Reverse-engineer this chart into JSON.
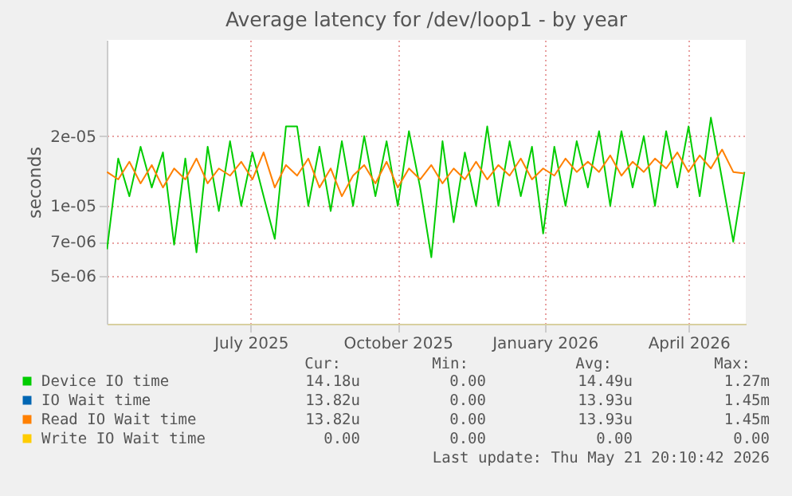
{
  "chart_data": {
    "type": "line",
    "title": "Average latency for /dev/loop1 - by year",
    "ylabel": "seconds",
    "log": true,
    "grid": true,
    "legend": "bottom",
    "marker": "none",
    "line_style": "solid",
    "xlim": [
      "2025-04-16T20:10",
      "2026-05-21T20:10"
    ],
    "xticks": [
      {
        "value": "2025-07-16",
        "label": "July 2025"
      },
      {
        "value": "2025-10-16",
        "label": "October 2025"
      },
      {
        "value": "2026-01-16",
        "label": "January 2026"
      },
      {
        "value": "2026-04-16",
        "label": "April 2026"
      }
    ],
    "ylim": [
      3.1e-06,
      5.2e-05
    ],
    "yticks": [
      {
        "value": 5e-06,
        "label": "5e-06"
      },
      {
        "value": 7e-06,
        "label": "7e-06"
      },
      {
        "value": 1e-05,
        "label": "1e-05"
      },
      {
        "value": 2e-05,
        "label": "2e-05"
      }
    ],
    "x": [
      "2025-04-17",
      "2025-04-24",
      "2025-05-01",
      "2025-05-08",
      "2025-05-15",
      "2025-05-22",
      "2025-05-29",
      "2025-06-05",
      "2025-06-12",
      "2025-06-19",
      "2025-06-26",
      "2025-07-03",
      "2025-07-10",
      "2025-07-17",
      "2025-07-24",
      "2025-07-31",
      "2025-08-07",
      "2025-08-14",
      "2025-08-21",
      "2025-08-28",
      "2025-09-04",
      "2025-09-11",
      "2025-09-18",
      "2025-09-25",
      "2025-10-02",
      "2025-10-09",
      "2025-10-16",
      "2025-10-23",
      "2025-10-30",
      "2025-11-06",
      "2025-11-13",
      "2025-11-20",
      "2025-11-27",
      "2025-12-04",
      "2025-12-11",
      "2025-12-18",
      "2025-12-25",
      "2026-01-01",
      "2026-01-08",
      "2026-01-15",
      "2026-01-22",
      "2026-01-29",
      "2026-02-05",
      "2026-02-12",
      "2026-02-19",
      "2026-02-26",
      "2026-03-05",
      "2026-03-12",
      "2026-03-19",
      "2026-03-26",
      "2026-04-02",
      "2026-04-09",
      "2026-04-16",
      "2026-04-23",
      "2026-04-30",
      "2026-05-07",
      "2026-05-14",
      "2026-05-21"
    ],
    "series": [
      {
        "name": "Device IO time",
        "color": "#00cc00",
        "values": [
          6.5e-06,
          1.6e-05,
          1.1e-05,
          1.8e-05,
          1.2e-05,
          1.7e-05,
          6.8e-06,
          1.6e-05,
          6.3e-06,
          1.8e-05,
          9.5e-06,
          1.9e-05,
          1e-05,
          1.7e-05,
          1.1e-05,
          7.2e-06,
          2.2e-05,
          2.2e-05,
          1e-05,
          1.8e-05,
          9.5e-06,
          1.9e-05,
          1e-05,
          2e-05,
          1.1e-05,
          1.9e-05,
          1e-05,
          2.1e-05,
          1.2e-05,
          6e-06,
          1.9e-05,
          8.5e-06,
          1.7e-05,
          1e-05,
          2.2e-05,
          1e-05,
          1.9e-05,
          1.1e-05,
          1.8e-05,
          7.6e-06,
          1.8e-05,
          1e-05,
          1.9e-05,
          1.2e-05,
          2.1e-05,
          1e-05,
          2.1e-05,
          1.2e-05,
          2e-05,
          1e-05,
          2.1e-05,
          1.2e-05,
          2.2e-05,
          1.1e-05,
          2.4e-05,
          1.3e-05,
          7e-06,
          1.4e-05
        ]
      },
      {
        "name": "IO Wait time",
        "color": "#0066b3",
        "values": [
          null,
          null,
          null,
          null,
          null,
          null,
          null,
          null,
          null,
          null,
          null,
          null,
          null,
          null,
          null,
          null,
          null,
          null,
          null,
          null,
          null,
          null,
          null,
          null,
          null,
          null,
          null,
          null,
          null,
          null,
          null,
          null,
          null,
          null,
          null,
          null,
          null,
          null,
          null,
          null,
          null,
          null,
          null,
          null,
          null,
          null,
          null,
          null,
          null,
          null,
          null,
          null,
          null,
          null,
          null,
          null,
          null,
          null
        ]
      },
      {
        "name": "Read IO Wait time",
        "color": "#ff8000",
        "values": [
          1.4e-05,
          1.3e-05,
          1.55e-05,
          1.25e-05,
          1.5e-05,
          1.2e-05,
          1.45e-05,
          1.3e-05,
          1.6e-05,
          1.25e-05,
          1.45e-05,
          1.35e-05,
          1.55e-05,
          1.3e-05,
          1.7e-05,
          1.2e-05,
          1.5e-05,
          1.35e-05,
          1.6e-05,
          1.2e-05,
          1.45e-05,
          1.1e-05,
          1.35e-05,
          1.5e-05,
          1.25e-05,
          1.55e-05,
          1.2e-05,
          1.45e-05,
          1.3e-05,
          1.5e-05,
          1.25e-05,
          1.45e-05,
          1.3e-05,
          1.55e-05,
          1.3e-05,
          1.5e-05,
          1.35e-05,
          1.6e-05,
          1.3e-05,
          1.45e-05,
          1.35e-05,
          1.6e-05,
          1.4e-05,
          1.55e-05,
          1.4e-05,
          1.65e-05,
          1.35e-05,
          1.55e-05,
          1.4e-05,
          1.6e-05,
          1.45e-05,
          1.7e-05,
          1.4e-05,
          1.65e-05,
          1.45e-05,
          1.75e-05,
          1.4e-05,
          1.38e-05
        ]
      },
      {
        "name": "Write IO Wait time",
        "color": "#ffcc00",
        "values": [
          null,
          null,
          null,
          null,
          null,
          null,
          null,
          null,
          null,
          null,
          null,
          null,
          null,
          null,
          null,
          null,
          null,
          null,
          null,
          null,
          null,
          null,
          null,
          null,
          null,
          null,
          null,
          null,
          null,
          null,
          null,
          null,
          null,
          null,
          null,
          null,
          null,
          null,
          null,
          null,
          null,
          null,
          null,
          null,
          null,
          null,
          null,
          null,
          null,
          null,
          null,
          null,
          null,
          null,
          null,
          null,
          null,
          null
        ]
      }
    ],
    "annotations": [
      "Cur:",
      "Min:",
      "Avg:",
      "Max:",
      "14.18u",
      "0.00",
      "14.49u",
      "1.27m",
      "13.82u",
      "0.00",
      "13.93u",
      "1.45m",
      "13.82u",
      "0.00",
      "13.93u",
      "1.45m",
      "0.00",
      "0.00",
      "0.00",
      "0.00",
      "Last update: Thu May 21 20:10:42 2026"
    ]
  }
}
